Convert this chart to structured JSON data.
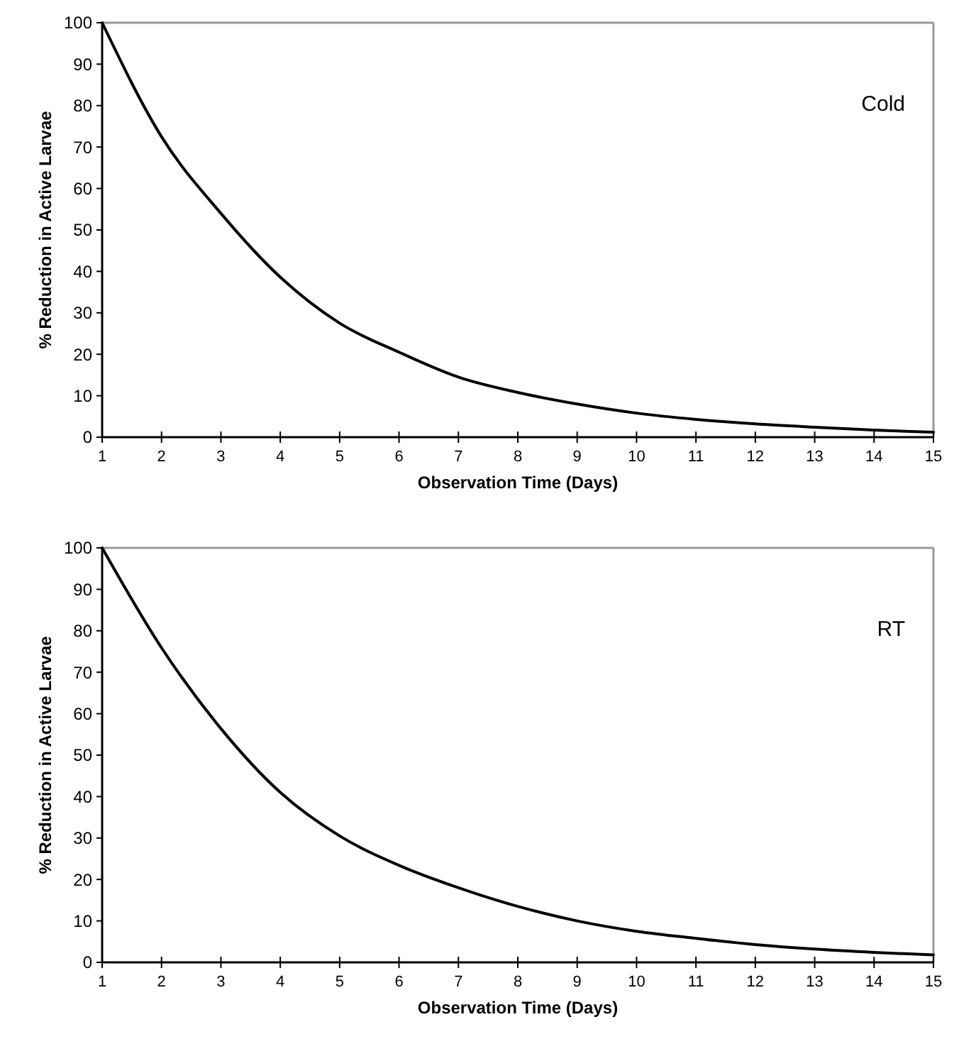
{
  "chart_data": [
    {
      "type": "line",
      "xlabel": "Observation Time (Days)",
      "ylabel": "% Reduction in Active Larvae",
      "annotations": [
        "Cold"
      ],
      "x": [
        1,
        2,
        3,
        4,
        5,
        6,
        7,
        8,
        9,
        10,
        11,
        12,
        13,
        14,
        15
      ],
      "xlim": [
        1,
        15
      ],
      "xticks": [
        1,
        2,
        3,
        4,
        5,
        6,
        7,
        8,
        9,
        10,
        11,
        12,
        13,
        14,
        15
      ],
      "ylim": [
        0,
        100
      ],
      "yticks": [
        0,
        10,
        20,
        30,
        40,
        50,
        60,
        70,
        80,
        90,
        100
      ],
      "grid": false,
      "series": [
        {
          "color": "#000000",
          "values": [
            100,
            72.5,
            54,
            38.6,
            27.5,
            20.5,
            14.5,
            10.8,
            8,
            5.8,
            4.3,
            3.2,
            2.4,
            1.7,
            1.2
          ]
        }
      ]
    },
    {
      "type": "line",
      "xlabel": "Observation Time (Days)",
      "ylabel": "% Reduction in Active Larvae",
      "annotations": [
        "RT"
      ],
      "x": [
        1,
        2,
        3,
        4,
        5,
        6,
        7,
        8,
        9,
        10,
        11,
        12,
        13,
        14,
        15
      ],
      "xlim": [
        1,
        15
      ],
      "xticks": [
        1,
        2,
        3,
        4,
        5,
        6,
        7,
        8,
        9,
        10,
        11,
        12,
        13,
        14,
        15
      ],
      "ylim": [
        0,
        100
      ],
      "yticks": [
        0,
        10,
        20,
        30,
        40,
        50,
        60,
        70,
        80,
        90,
        100
      ],
      "grid": false,
      "series": [
        {
          "color": "#000000",
          "values": [
            100,
            75.9,
            56.4,
            41,
            30.5,
            23.4,
            18,
            13.5,
            10,
            7.5,
            5.8,
            4.3,
            3.2,
            2.4,
            1.8
          ]
        }
      ]
    }
  ]
}
